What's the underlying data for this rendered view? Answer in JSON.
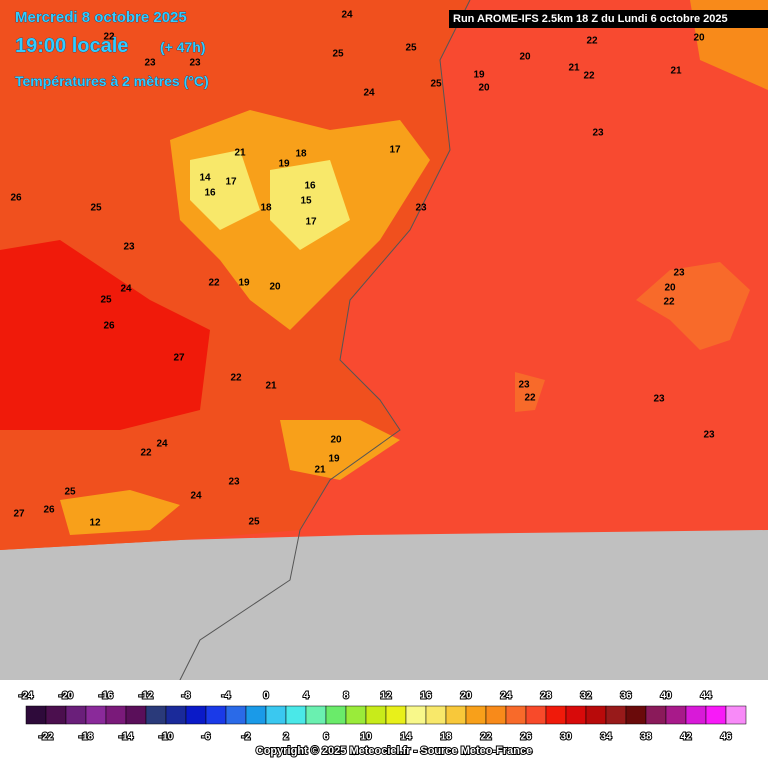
{
  "header": {
    "date": "Mercredi 8 octobre 2025",
    "time": "19:00 locale",
    "lead": "(+ 47h)",
    "variable": "Températures à 2 mètres (°C)",
    "run": "Run AROME-IFS 2.5km 18 Z du Lundi 6 octobre 2025"
  },
  "map_labels": [
    24,
    22,
    25,
    25,
    22,
    20,
    23,
    23,
    24,
    25,
    19,
    20,
    20,
    21,
    22,
    21,
    23,
    21,
    19,
    18,
    17,
    14,
    17,
    16,
    16,
    15,
    18,
    17,
    23,
    26,
    25,
    23,
    22,
    19,
    20,
    24,
    25,
    26,
    27,
    22,
    21,
    23,
    20,
    22,
    23,
    22,
    23,
    23,
    20,
    24,
    22,
    19,
    21,
    23,
    24,
    25,
    27,
    26,
    12,
    25
  ],
  "legend": {
    "labels": [
      -24,
      -22,
      -20,
      -18,
      -16,
      -14,
      -12,
      -10,
      -8,
      -6,
      -4,
      -2,
      0,
      2,
      4,
      6,
      8,
      10,
      12,
      14,
      16,
      18,
      20,
      22,
      24,
      26,
      28,
      30,
      32,
      34,
      36,
      38,
      40,
      42,
      44,
      46
    ],
    "colors": [
      "#2e0a3a",
      "#4b0f4e",
      "#6a1f7a",
      "#8a2a9a",
      "#7a1a7a",
      "#5a0f5a",
      "#2a3a7a",
      "#1a2a9a",
      "#0a1ac8",
      "#1a3ae8",
      "#2a6ae8",
      "#1a9ae8",
      "#3ac8f0",
      "#4ae8e8",
      "#6af0b0",
      "#6aeb6a",
      "#9aeb3a",
      "#c8eb1a",
      "#e8f01a",
      "#f8f88a",
      "#f8e86a",
      "#f8c83a",
      "#f8a01a",
      "#f88a1a",
      "#f86a2a",
      "#f84a2a",
      "#f01a0a",
      "#d80a0a",
      "#b80a0a",
      "#981a1a",
      "#6a0a0a",
      "#8a1a5a",
      "#a81a8a",
      "#d81ad8",
      "#f81af8",
      "#f88af8"
    ]
  },
  "footer": {
    "copyright": "Copyright © 2025 Meteociel.fr - Source Meteo-France"
  }
}
